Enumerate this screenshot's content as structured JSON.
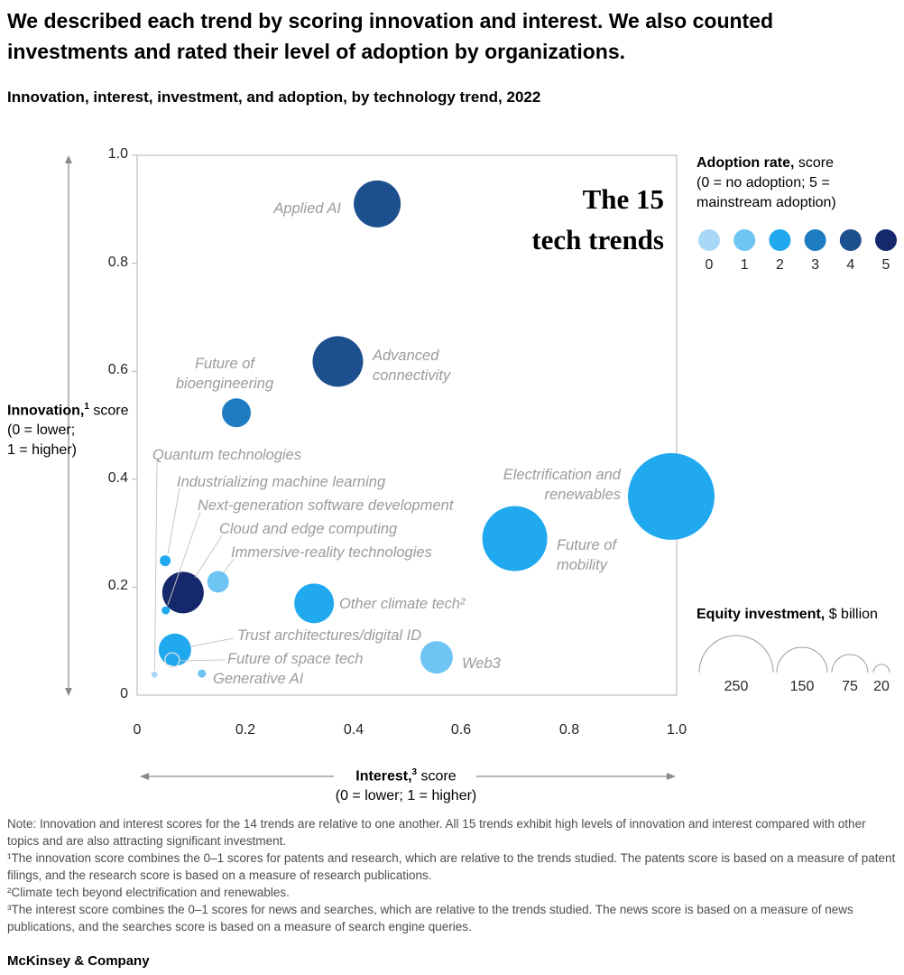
{
  "header": {
    "title": "We described each trend by scoring innovation and interest. We also counted investments and rated their level of adoption by organizations.",
    "subtitle": "Innovation, interest, investment, and adoption, by technology trend, 2022"
  },
  "plot_title": {
    "line1": "The 15",
    "line2": "tech trends"
  },
  "axes": {
    "x": {
      "bold": "Interest,",
      "sup": "3",
      "rest": " score",
      "sub": "(0 = lower; 1 = higher)",
      "ticks": [
        "0",
        "0.2",
        "0.4",
        "0.6",
        "0.8",
        "1.0"
      ]
    },
    "y": {
      "bold": "Innovation,",
      "sup": "1",
      "rest": " score",
      "sub1": "(0 = lower;",
      "sub2": "1 = higher)",
      "ticks": [
        "1.0",
        "0.8",
        "0.6",
        "0.4",
        "0.2",
        "0"
      ]
    }
  },
  "legends": {
    "adoption": {
      "bold": "Adoption rate,",
      "rest": " score",
      "line2": "(0 = no adoption; 5 =",
      "line3": "mainstream adoption)",
      "scores": [
        "0",
        "1",
        "2",
        "3",
        "4",
        "5"
      ]
    },
    "equity": {
      "bold": "Equity investment,",
      "rest": " $ billion",
      "items": [
        {
          "label": "250",
          "r": 41
        },
        {
          "label": "150",
          "r": 28
        },
        {
          "label": "75",
          "r": 20
        },
        {
          "label": "20",
          "r": 9
        }
      ]
    }
  },
  "chart_data": {
    "type": "scatter",
    "title": "The 15 tech trends",
    "xlabel": "Interest, score (0 = lower; 1 = higher)",
    "ylabel": "Innovation, score (0 = lower; 1 = higher)",
    "xlim": [
      0,
      1
    ],
    "ylim": [
      0,
      1
    ],
    "grid": false,
    "size_legend": "Equity investment, $ billion (bubble area); reference sizes 250, 150, 75, 20",
    "color_legend": "Adoption rate, score (0 = no adoption; 5 = mainstream adoption)",
    "adoption_colors": [
      "#A9D8F7",
      "#6EC4F2",
      "#21A9F0",
      "#1E7CC2",
      "#1B4F8E",
      "#14286B"
    ],
    "outline_color": "#E0E0E0",
    "series": [
      {
        "name": "Applied AI",
        "interest": 0.445,
        "innovation": 0.91,
        "adoption": 4,
        "radius_px": 26
      },
      {
        "name": "Advanced connectivity",
        "interest": 0.372,
        "innovation": 0.618,
        "adoption": 4,
        "radius_px": 28
      },
      {
        "name": "Future of bioengineering",
        "interest": 0.184,
        "innovation": 0.523,
        "adoption": 3,
        "radius_px": 16
      },
      {
        "name": "Quantum technologies",
        "interest": 0.032,
        "innovation": 0.038,
        "adoption": 0,
        "radius_px": 3.5
      },
      {
        "name": "Industrializing machine learning",
        "interest": 0.052,
        "innovation": 0.249,
        "adoption": 2,
        "radius_px": 6
      },
      {
        "name": "Next-generation software development",
        "interest": 0.053,
        "innovation": 0.157,
        "adoption": 2,
        "radius_px": 4.5
      },
      {
        "name": "Cloud and edge computing",
        "interest": 0.085,
        "innovation": 0.19,
        "adoption": 5,
        "radius_px": 23
      },
      {
        "name": "Immersive-reality technologies",
        "interest": 0.15,
        "innovation": 0.21,
        "adoption": 1,
        "radius_px": 12
      },
      {
        "name": "Other climate tech²",
        "interest": 0.328,
        "innovation": 0.17,
        "adoption": 2,
        "radius_px": 22
      },
      {
        "name": "Trust architectures/digital ID",
        "interest": 0.07,
        "innovation": 0.084,
        "adoption": 2,
        "radius_px": 18
      },
      {
        "name": "Future of space tech",
        "interest": 0.065,
        "innovation": 0.065,
        "adoption": null,
        "outline": true,
        "radius_px": 8
      },
      {
        "name": "Generative AI",
        "interest": 0.12,
        "innovation": 0.04,
        "adoption": 1,
        "radius_px": 4.5
      },
      {
        "name": "Web3",
        "interest": 0.555,
        "innovation": 0.07,
        "adoption": 1,
        "radius_px": 18
      },
      {
        "name": "Future of mobility",
        "interest": 0.7,
        "innovation": 0.29,
        "adoption": 2,
        "radius_px": 36
      },
      {
        "name": "Electrification and renewables",
        "interest": 0.99,
        "innovation": 0.368,
        "adoption": 2,
        "radius_px": 48
      }
    ]
  },
  "footnotes": {
    "note": "Note: Innovation and interest scores for the 14 trends are relative to one another. All 15 trends exhibit high levels of innovation and interest compared with other topics and are also attracting significant investment.",
    "f1": "¹The innovation score combines the 0–1 scores for patents and research, which are relative to the trends studied. The patents score is based on a measure of patent filings, and the research score is based on a measure of research publications.",
    "f2": "²Climate tech beyond electrification and renewables.",
    "f3": "³The interest score combines the 0–1 scores for news and searches, which are relative to the trends studied. The news score is based on a measure of news publications, and the searches score is based on a measure of search engine queries."
  },
  "footer": "McKinsey & Company"
}
